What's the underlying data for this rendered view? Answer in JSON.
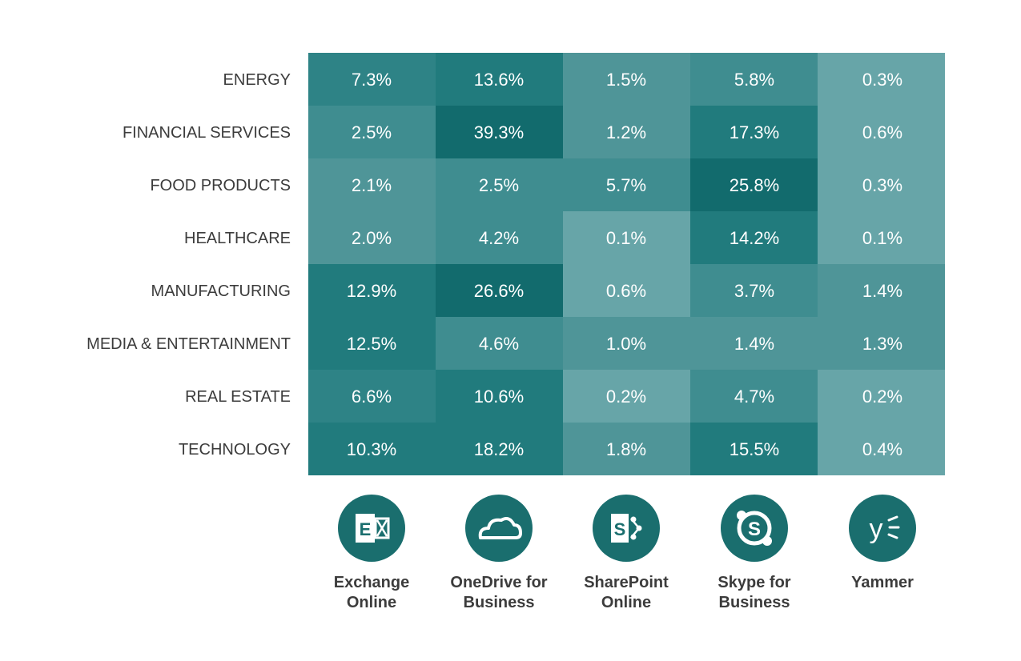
{
  "chart_data": {
    "type": "heatmap",
    "rows": [
      "ENERGY",
      "FINANCIAL SERVICES",
      "FOOD PRODUCTS",
      "HEALTHCARE",
      "MANUFACTURING",
      "MEDIA & ENTERTAINMENT",
      "REAL ESTATE",
      "TECHNOLOGY"
    ],
    "columns": [
      {
        "label_lines": [
          "Exchange",
          "Online"
        ],
        "icon": "exchange-icon"
      },
      {
        "label_lines": [
          "OneDrive for",
          "Business"
        ],
        "icon": "onedrive-icon"
      },
      {
        "label_lines": [
          "SharePoint",
          "Online"
        ],
        "icon": "sharepoint-icon"
      },
      {
        "label_lines": [
          "Skype for",
          "Business"
        ],
        "icon": "skype-icon"
      },
      {
        "label_lines": [
          "Yammer"
        ],
        "icon": "yammer-icon"
      }
    ],
    "values": [
      [
        7.3,
        13.6,
        1.5,
        5.8,
        0.3
      ],
      [
        2.5,
        39.3,
        1.2,
        17.3,
        0.6
      ],
      [
        2.1,
        2.5,
        5.7,
        25.8,
        0.3
      ],
      [
        2.0,
        4.2,
        0.1,
        14.2,
        0.1
      ],
      [
        12.9,
        26.6,
        0.6,
        3.7,
        1.4
      ],
      [
        12.5,
        4.6,
        1.0,
        1.4,
        1.3
      ],
      [
        6.6,
        10.6,
        0.2,
        4.7,
        0.2
      ],
      [
        10.3,
        18.2,
        1.8,
        15.5,
        0.4
      ]
    ],
    "value_labels": [
      [
        "7.3%",
        "13.6%",
        "1.5%",
        "5.8%",
        "0.3%"
      ],
      [
        "2.5%",
        "39.3%",
        "1.2%",
        "17.3%",
        "0.6%"
      ],
      [
        "2.1%",
        "2.5%",
        "5.7%",
        "25.8%",
        "0.3%"
      ],
      [
        "2.0%",
        "4.2%",
        "0.1%",
        "14.2%",
        "0.1%"
      ],
      [
        "12.9%",
        "26.6%",
        "0.6%",
        "3.7%",
        "1.4%"
      ],
      [
        "12.5%",
        "4.6%",
        "1.0%",
        "1.4%",
        "1.3%"
      ],
      [
        "6.6%",
        "10.6%",
        "0.2%",
        "4.7%",
        "0.2%"
      ],
      [
        "10.3%",
        "18.2%",
        "1.8%",
        "15.5%",
        "0.4%"
      ]
    ],
    "colors": {
      "level_1": "#67a5a8",
      "level_2": "#4f9598",
      "level_3": "#3f8d90",
      "level_4": "#2e8386",
      "level_5": "#217b7d",
      "level_6": "#126b6d",
      "icon_circle": "#1a6e6e",
      "row_label_text": "#3c3c3c",
      "cell_text": "#ffffff"
    }
  }
}
